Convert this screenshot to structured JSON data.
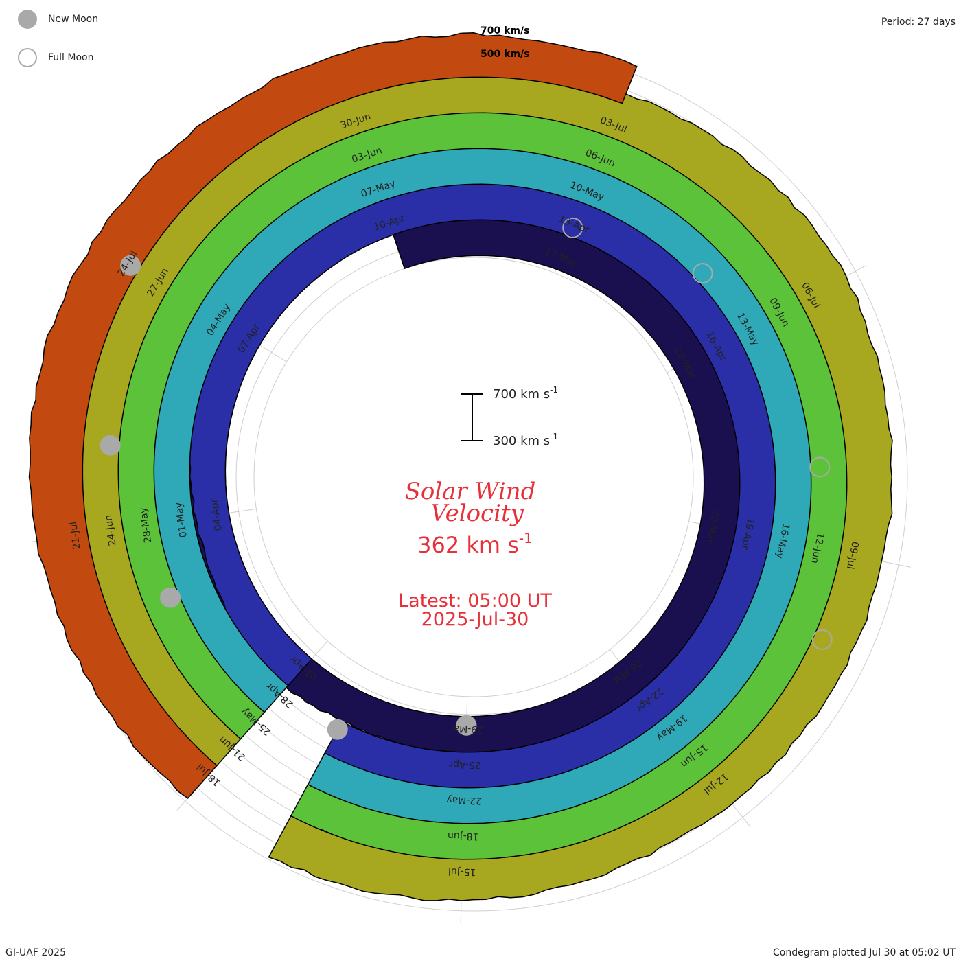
{
  "legend": {
    "new_moon_label": "New Moon",
    "full_moon_label": "Full Moon"
  },
  "header": {
    "period": "Period: 27 days"
  },
  "footer": {
    "left": "GI-UAF 2025",
    "right": "Condegram plotted Jul 30 at 05:02 UT"
  },
  "center": {
    "title_line1": "Solar Wind",
    "title_line2": "Velocity",
    "current_value": "362",
    "current_unit": "km s",
    "current_unit_exp": "-1",
    "latest_line1": "Latest: 05:00 UT",
    "latest_line2": "2025-Jul-30",
    "scale_top": "700 km s",
    "scale_bottom": "300 km s",
    "scale_exp": "-1",
    "accent_color": "#e8303a"
  },
  "chart_data": {
    "type": "area",
    "title": "Solar Wind Velocity",
    "period_days": 27,
    "unit": "km/s",
    "reference_speeds": [
      {
        "label": "700 km/s",
        "value": 700
      },
      {
        "label": "500 km/s",
        "value": 500
      }
    ],
    "rotations": [
      {
        "color": "#1a1050",
        "start": "2025-Mar-14",
        "labels": [
          "17-Mar",
          "20-Mar",
          "23-Mar",
          "26-Mar",
          "29-Mar"
        ],
        "speeds": [
          480,
          470,
          465,
          470,
          480,
          520,
          540,
          560,
          530,
          500,
          480,
          470,
          460,
          470,
          480,
          470,
          460,
          450,
          470,
          520,
          550,
          560,
          540,
          560,
          580,
          590,
          600
        ]
      },
      {
        "color": "#2a2fa8",
        "start": "2025-Apr-01",
        "labels": [
          "01-Apr",
          "04-Apr",
          "07-Apr",
          "10-Apr",
          "13-Apr",
          "16-Apr",
          "19-Apr",
          "22-Apr",
          "25-Apr"
        ],
        "speeds": [
          480,
          470,
          440,
          430,
          470,
          520,
          560,
          610,
          660,
          640,
          600,
          580,
          560,
          540,
          560,
          580,
          600,
          620,
          640,
          680,
          700,
          720,
          690,
          640,
          600,
          560,
          520
        ]
      },
      {
        "color": "#2fa8b8",
        "start": "2025-Apr-28",
        "labels": [
          "28-Apr",
          "01-May",
          "04-May",
          "07-May",
          "10-May",
          "13-May",
          "16-May",
          "19-May",
          "22-May",
          "25-May"
        ],
        "speeds": [
          500,
          520,
          550,
          600,
          640,
          620,
          600,
          580,
          560,
          540,
          520,
          540,
          560,
          580,
          600,
          620,
          640,
          660,
          640,
          620,
          600,
          580,
          560,
          540,
          520,
          500,
          480
        ]
      },
      {
        "color": "#5cc23a",
        "start": "2025-May-25",
        "labels": [
          "28-May",
          "03-Jun",
          "06-Jun",
          "09-Jun",
          "12-Jun",
          "15-Jun",
          "18-Jun",
          "21-Jun"
        ],
        "speeds": [
          520,
          560,
          600,
          640,
          680,
          700,
          680,
          660,
          640,
          620,
          600,
          580,
          560,
          540,
          560,
          580,
          600,
          620,
          600,
          580,
          560,
          540,
          520,
          500,
          480,
          470,
          460
        ]
      },
      {
        "color": "#a8a820",
        "start": "2025-Jun-21",
        "labels": [
          "24-Jun",
          "27-Jun",
          "30-Jun",
          "03-Jul",
          "06-Jul",
          "09-Jul",
          "12-Jul",
          "15-Jul",
          "18-Jul"
        ],
        "speeds": [
          480,
          520,
          560,
          600,
          620,
          600,
          580,
          560,
          540,
          520,
          500,
          520,
          540,
          560,
          580,
          600,
          560,
          540,
          520,
          500,
          480,
          470,
          460,
          480,
          500,
          520,
          540
        ]
      },
      {
        "color": "#c24a10",
        "start": "2025-Jul-18",
        "labels": [
          "21-Jul",
          "24-Jul"
        ],
        "speeds": [
          520,
          540,
          560,
          580,
          600,
          620,
          600,
          580,
          560,
          540,
          520,
          500,
          480
        ]
      }
    ],
    "moons": [
      {
        "type": "new",
        "date": "2025-Mar-29"
      },
      {
        "type": "full",
        "date": "2025-Apr-13"
      },
      {
        "type": "new",
        "date": "2025-Apr-27"
      },
      {
        "type": "full",
        "date": "2025-May-12"
      },
      {
        "type": "new",
        "date": "2025-May-27"
      },
      {
        "type": "full",
        "date": "2025-Jun-11"
      },
      {
        "type": "new",
        "date": "2025-Jun-25"
      },
      {
        "type": "full",
        "date": "2025-Jul-10"
      },
      {
        "type": "new",
        "date": "2025-Jul-24"
      }
    ]
  }
}
